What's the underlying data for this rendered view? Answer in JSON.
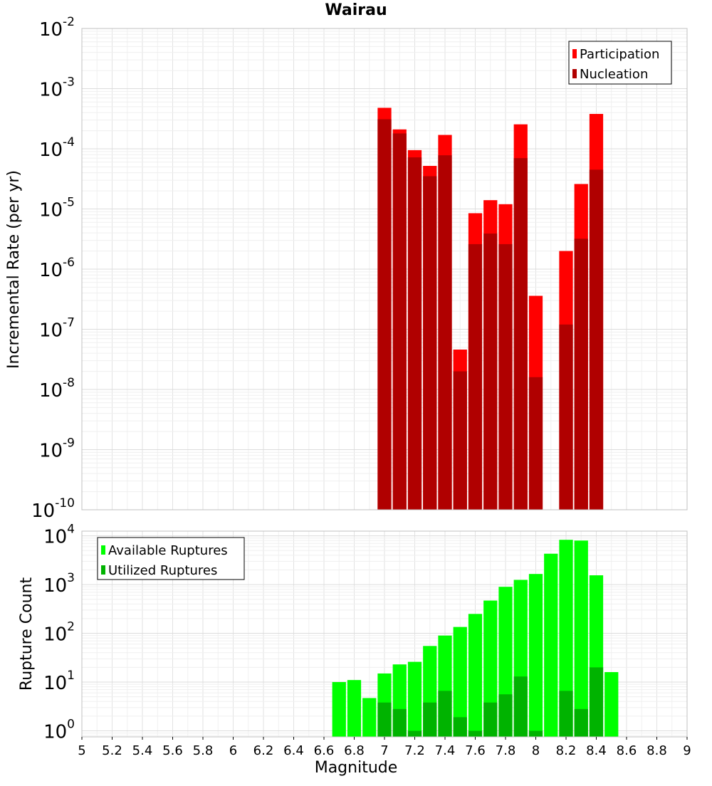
{
  "chart_data": [
    {
      "type": "bar",
      "title": "Wairau",
      "xlabel": "",
      "ylabel": "Incremental Rate (per yr)",
      "yscale": "log",
      "ylim": [
        1e-10,
        0.01
      ],
      "xlim": [
        5,
        9
      ],
      "bar_width": 0.1,
      "grid": true,
      "legend_position": "top-right",
      "x": [
        7.0,
        7.1,
        7.2,
        7.3,
        7.4,
        7.5,
        7.6,
        7.7,
        7.8,
        7.9,
        8.0,
        8.2,
        8.3,
        8.4
      ],
      "series": [
        {
          "name": "Participation",
          "color": "#ff0000",
          "values": [
            0.00048,
            0.00021,
            9.5e-05,
            5.2e-05,
            0.00017,
            4.6e-08,
            8.5e-06,
            1.4e-05,
            1.2e-05,
            0.000255,
            3.6e-07,
            2e-06,
            2.6e-05,
            0.00038
          ]
        },
        {
          "name": "Nucleation",
          "color": "#b00000",
          "values": [
            0.00031,
            0.00018,
            7.2e-05,
            3.5e-05,
            7.8e-05,
            2e-08,
            2.6e-06,
            3.9e-06,
            2.6e-06,
            7e-05,
            1.6e-08,
            1.2e-07,
            3.2e-06,
            4.5e-05
          ]
        }
      ],
      "y_ticks": {
        "base": "10",
        "exponents": [
          "-10",
          "-9",
          "-8",
          "-7",
          "-6",
          "-5",
          "-4",
          "-3",
          "-2"
        ]
      }
    },
    {
      "type": "bar",
      "title": "",
      "xlabel": "Magnitude",
      "ylabel": "Rupture Count",
      "yscale": "log",
      "ylim": [
        0.75,
        12500
      ],
      "xlim": [
        5,
        9
      ],
      "bar_width": 0.1,
      "grid": true,
      "legend_position": "top-left",
      "series": [
        {
          "name": "Available Ruptures",
          "color": "#00ff00",
          "x": [
            6.7,
            6.8,
            6.9,
            7.0,
            7.1,
            7.2,
            7.3,
            7.4,
            7.5,
            7.6,
            7.7,
            7.8,
            7.9,
            8.0,
            8.1,
            8.2,
            8.3,
            8.4,
            8.5
          ],
          "values": [
            10,
            11,
            4.7,
            15,
            23,
            26,
            55,
            90,
            135,
            250,
            470,
            900,
            1250,
            1650,
            4300,
            8300,
            8000,
            1550,
            16
          ]
        },
        {
          "name": "Utilized Ruptures",
          "color": "#00b300",
          "x": [
            7.0,
            7.1,
            7.2,
            7.3,
            7.4,
            7.5,
            7.6,
            7.7,
            7.8,
            7.9,
            8.0,
            8.2,
            8.3,
            8.4
          ],
          "values": [
            3.8,
            2.8,
            1,
            3.8,
            6.6,
            1.9,
            1,
            3.8,
            5.6,
            13,
            1,
            6.6,
            2.8,
            20
          ]
        }
      ],
      "y_ticks": {
        "base": "10",
        "exponents": [
          "0",
          "1",
          "2",
          "3",
          "4"
        ]
      },
      "x_ticks": [
        "5",
        "5.2",
        "5.4",
        "5.6",
        "5.8",
        "6",
        "6.2",
        "6.4",
        "6.6",
        "6.8",
        "7",
        "7.2",
        "7.4",
        "7.6",
        "7.8",
        "8",
        "8.2",
        "8.4",
        "8.6",
        "8.8",
        "9"
      ]
    }
  ]
}
